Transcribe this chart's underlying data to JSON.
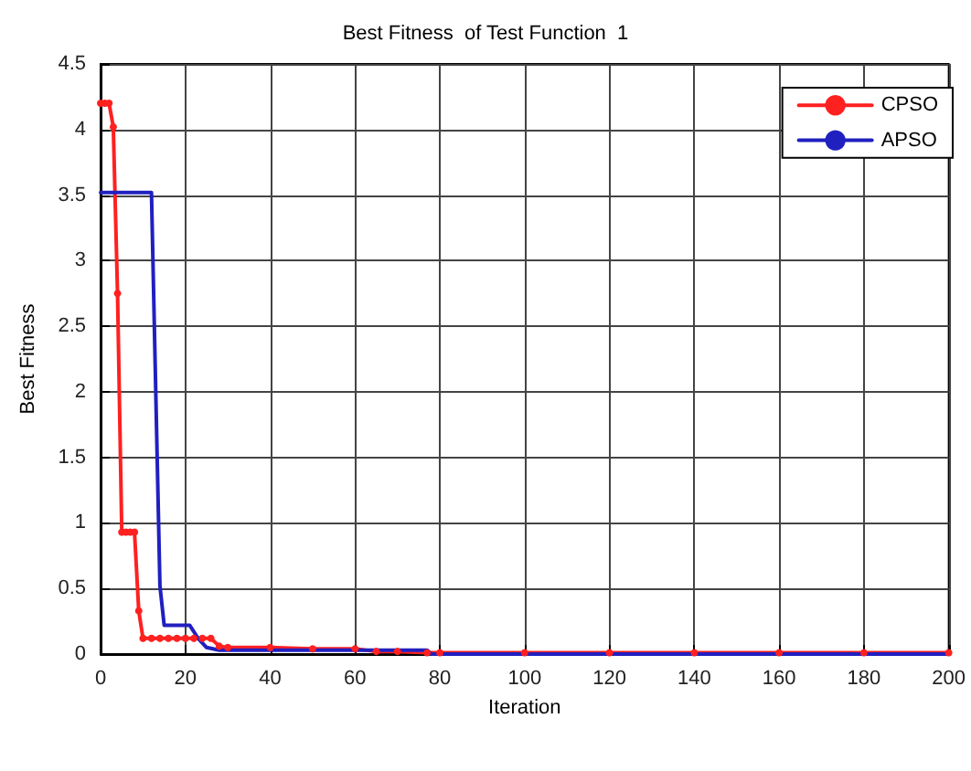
{
  "chart_data": {
    "type": "line",
    "title": "Best Fitness  of Test Function  1",
    "xlabel": "Iteration",
    "ylabel": "Best Fitness",
    "series": [
      {
        "name": "CPSO",
        "color": "#ff2020",
        "marker": "circle",
        "x": [
          0,
          1,
          2,
          3,
          4,
          5,
          6,
          7,
          8,
          9,
          10,
          12,
          14,
          16,
          18,
          20,
          22,
          24,
          26,
          28,
          30,
          40,
          50,
          60,
          65,
          70,
          77,
          80,
          100,
          120,
          140,
          160,
          180,
          200
        ],
        "values": [
          4.2,
          4.2,
          4.2,
          4.02,
          2.75,
          0.93,
          0.93,
          0.93,
          0.93,
          0.33,
          0.12,
          0.12,
          0.12,
          0.12,
          0.12,
          0.12,
          0.12,
          0.12,
          0.12,
          0.06,
          0.05,
          0.05,
          0.04,
          0.04,
          0.02,
          0.02,
          0.01,
          0.01,
          0.01,
          0.01,
          0.01,
          0.01,
          0.01,
          0.01
        ]
      },
      {
        "name": "APSO",
        "color": "#2020c0",
        "marker": "none",
        "x": [
          0,
          12,
          14,
          15,
          21,
          23,
          25,
          28,
          77,
          78,
          200
        ],
        "values": [
          3.52,
          3.52,
          0.52,
          0.22,
          0.22,
          0.12,
          0.05,
          0.03,
          0.03,
          0.0,
          0.0
        ]
      }
    ],
    "xlim": [
      0,
      200
    ],
    "xticks": [
      0,
      20,
      40,
      60,
      80,
      100,
      120,
      140,
      160,
      180,
      200
    ],
    "ylim": [
      0,
      4.5
    ],
    "yticks": [
      0,
      0.5,
      1,
      1.5,
      2,
      2.5,
      3,
      3.5,
      4,
      4.5
    ],
    "grid": true,
    "legend": "top right"
  }
}
